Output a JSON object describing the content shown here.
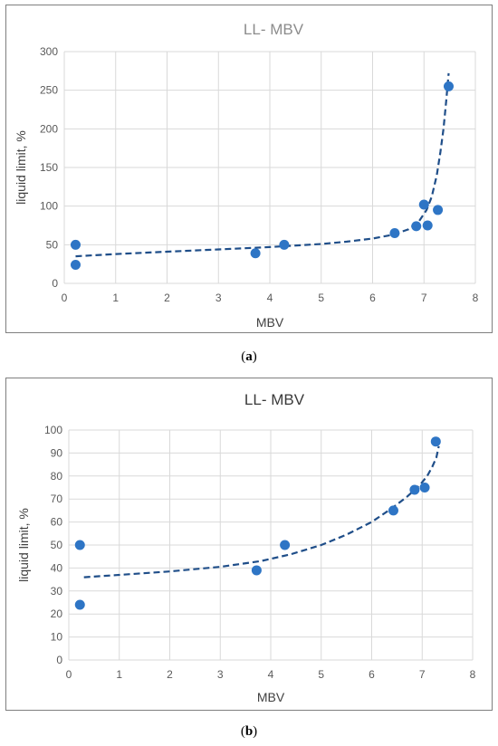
{
  "chart_data": [
    {
      "type": "scatter",
      "panel_label": "a",
      "title": "LL- MBV",
      "title_style": "light",
      "xlabel": "MBV",
      "ylabel": "liquid limit, %",
      "xlim": [
        0,
        8
      ],
      "ylim": [
        0,
        300
      ],
      "xticks": [
        0,
        1,
        2,
        3,
        4,
        5,
        6,
        7,
        8
      ],
      "yticks": [
        0,
        50,
        100,
        150,
        200,
        250,
        300
      ],
      "grid": true,
      "legend": "none",
      "marker_color": "#2e75c5",
      "trend_color": "#1f4e89",
      "series": [
        {
          "x": [
            0.22,
            0.22,
            3.72,
            4.28,
            6.43,
            6.85,
            7.0,
            7.07,
            7.27,
            7.48
          ],
          "y": [
            50,
            24,
            39,
            50,
            65,
            74,
            102,
            75,
            95,
            255
          ]
        }
      ],
      "trendline": {
        "style": "dashed",
        "x": [
          0.22,
          1.0,
          2.0,
          3.0,
          4.0,
          5.0,
          5.5,
          6.0,
          6.4,
          6.7,
          6.9,
          7.05,
          7.15,
          7.25,
          7.32,
          7.38,
          7.43,
          7.48
        ],
        "y": [
          35,
          38,
          41,
          44,
          47,
          51,
          54,
          58,
          63,
          70,
          80,
          95,
          112,
          140,
          170,
          200,
          235,
          272
        ]
      }
    },
    {
      "type": "scatter",
      "panel_label": "b",
      "title": "LL- MBV",
      "title_style": "dark",
      "xlabel": "MBV",
      "ylabel": "liquid limit, %",
      "xlim": [
        0,
        8
      ],
      "ylim": [
        0,
        100
      ],
      "xticks": [
        0,
        1,
        2,
        3,
        4,
        5,
        6,
        7,
        8
      ],
      "yticks": [
        0,
        10,
        20,
        30,
        40,
        50,
        60,
        70,
        80,
        90,
        100
      ],
      "grid": true,
      "legend": "none",
      "marker_color": "#2e75c5",
      "trend_color": "#1f4e89",
      "series": [
        {
          "x": [
            0.22,
            0.22,
            3.72,
            4.28,
            6.43,
            6.85,
            7.05,
            7.27
          ],
          "y": [
            50,
            24,
            39,
            50,
            65,
            74,
            75,
            95
          ]
        }
      ],
      "trendline": {
        "style": "dashed",
        "x": [
          0.3,
          1.0,
          2.0,
          3.0,
          3.8,
          4.4,
          5.0,
          5.5,
          6.0,
          6.4,
          6.7,
          6.95,
          7.1,
          7.2,
          7.28,
          7.33
        ],
        "y": [
          36,
          37,
          38.5,
          40.5,
          43,
          46,
          50,
          54.5,
          60,
          66,
          71,
          76,
          80,
          84,
          88,
          93
        ]
      }
    }
  ],
  "captions": [
    "(a)",
    "(b)"
  ],
  "caption_letters": [
    "a",
    "b"
  ]
}
